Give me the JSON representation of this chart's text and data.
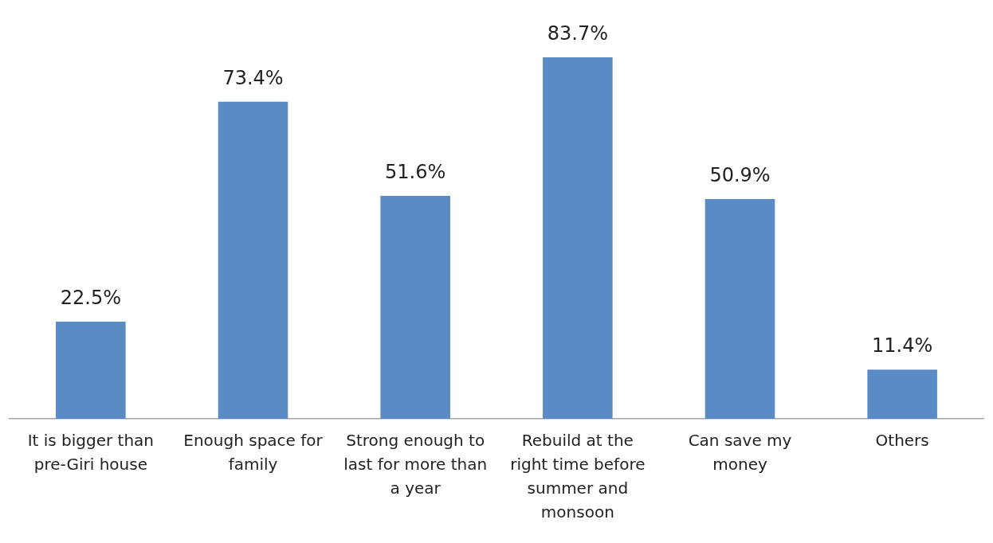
{
  "chart_data": {
    "type": "bar",
    "categories": [
      "It is bigger than pre-Giri house",
      "Enough space for family",
      "Strong enough to last for more than a year",
      "Rebuild at the right time before summer and monsoon",
      "Can save my money",
      "Others"
    ],
    "values": [
      22.5,
      73.4,
      51.6,
      83.7,
      50.9,
      11.4
    ],
    "value_labels": [
      "22.5%",
      "73.4%",
      "51.6%",
      "83.7%",
      "50.9%",
      "11.4%"
    ],
    "color": "#5b8bc5",
    "grid": false,
    "legend": false
  }
}
